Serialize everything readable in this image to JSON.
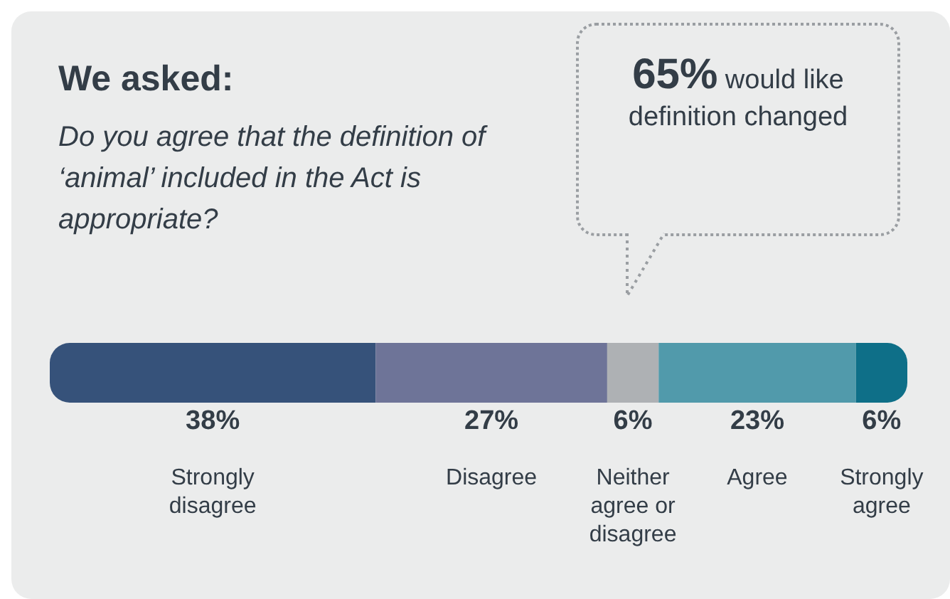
{
  "chart_data": {
    "type": "bar",
    "orientation": "horizontal",
    "stacked": true,
    "title": "We asked:",
    "subtitle": "Do you agree that the definition of ‘animal’ included in the Act is appropriate?",
    "annotations": [
      "65% would like definition changed"
    ],
    "categories": [
      null
    ],
    "tick_labels": false,
    "legend": false,
    "series": [
      {
        "name": "Strongly disagree",
        "color": "#36527a",
        "values": [
          38
        ],
        "value_labels": [
          "38%"
        ]
      },
      {
        "name": "Disagree",
        "color": "#6e7498",
        "values": [
          27
        ],
        "value_labels": [
          "27%"
        ]
      },
      {
        "name": "Neither agree or disagree",
        "color": "#aeb1b4",
        "values": [
          6
        ],
        "value_labels": [
          "6%"
        ]
      },
      {
        "name": "Agree",
        "color": "#519aab",
        "values": [
          23
        ],
        "value_labels": [
          "23%"
        ]
      },
      {
        "name": "Strongly agree",
        "color": "#0e6f88",
        "values": [
          6
        ],
        "value_labels": [
          "6%"
        ]
      }
    ]
  }
}
